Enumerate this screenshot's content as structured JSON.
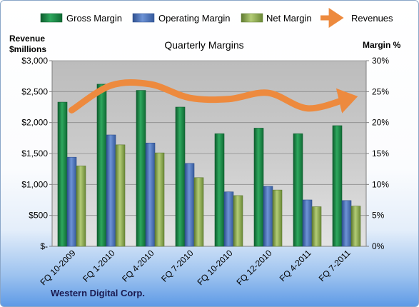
{
  "chart_data": {
    "type": "bar",
    "title": "Quarterly Margins",
    "categories": [
      "FQ 10-2009",
      "FQ 1-2010",
      "FQ 4-2010",
      "FQ 7-2010",
      "FQ 10-2010",
      "FQ 12-2010",
      "FQ 4-2011",
      "FQ 7-2011"
    ],
    "series": [
      {
        "name": "Gross Margin",
        "axis": "right",
        "color": "#1e8a4a",
        "values": [
          23.3,
          26.2,
          25.2,
          22.5,
          18.2,
          19.1,
          18.2,
          19.5
        ]
      },
      {
        "name": "Operating Margin",
        "axis": "right",
        "color": "#4f74b8",
        "values": [
          14.4,
          18.0,
          16.7,
          13.4,
          8.8,
          9.7,
          7.5,
          7.4
        ]
      },
      {
        "name": "Net Margin",
        "axis": "right",
        "color": "#8fae56",
        "values": [
          13.0,
          16.4,
          15.1,
          11.1,
          8.2,
          9.1,
          6.4,
          6.5
        ]
      },
      {
        "name": "Revenues",
        "axis": "left",
        "type": "line",
        "color": "#ed8a3e",
        "values": [
          2200,
          2600,
          2620,
          2400,
          2380,
          2480,
          2230,
          2380
        ]
      }
    ],
    "y_left": {
      "label": "Revenue $millions",
      "ticks": [
        "$-",
        "$500",
        "$1,000",
        "$1,500",
        "$2,000",
        "$2,500",
        "$3,000"
      ],
      "range": [
        0,
        3000
      ]
    },
    "y_right": {
      "label": "Margin %",
      "ticks": [
        "0%",
        "5%",
        "10%",
        "15%",
        "20%",
        "25%",
        "30%"
      ],
      "range": [
        0,
        30
      ]
    },
    "grid": true,
    "legend_position": "top",
    "footer": "Western Digital Corp."
  }
}
